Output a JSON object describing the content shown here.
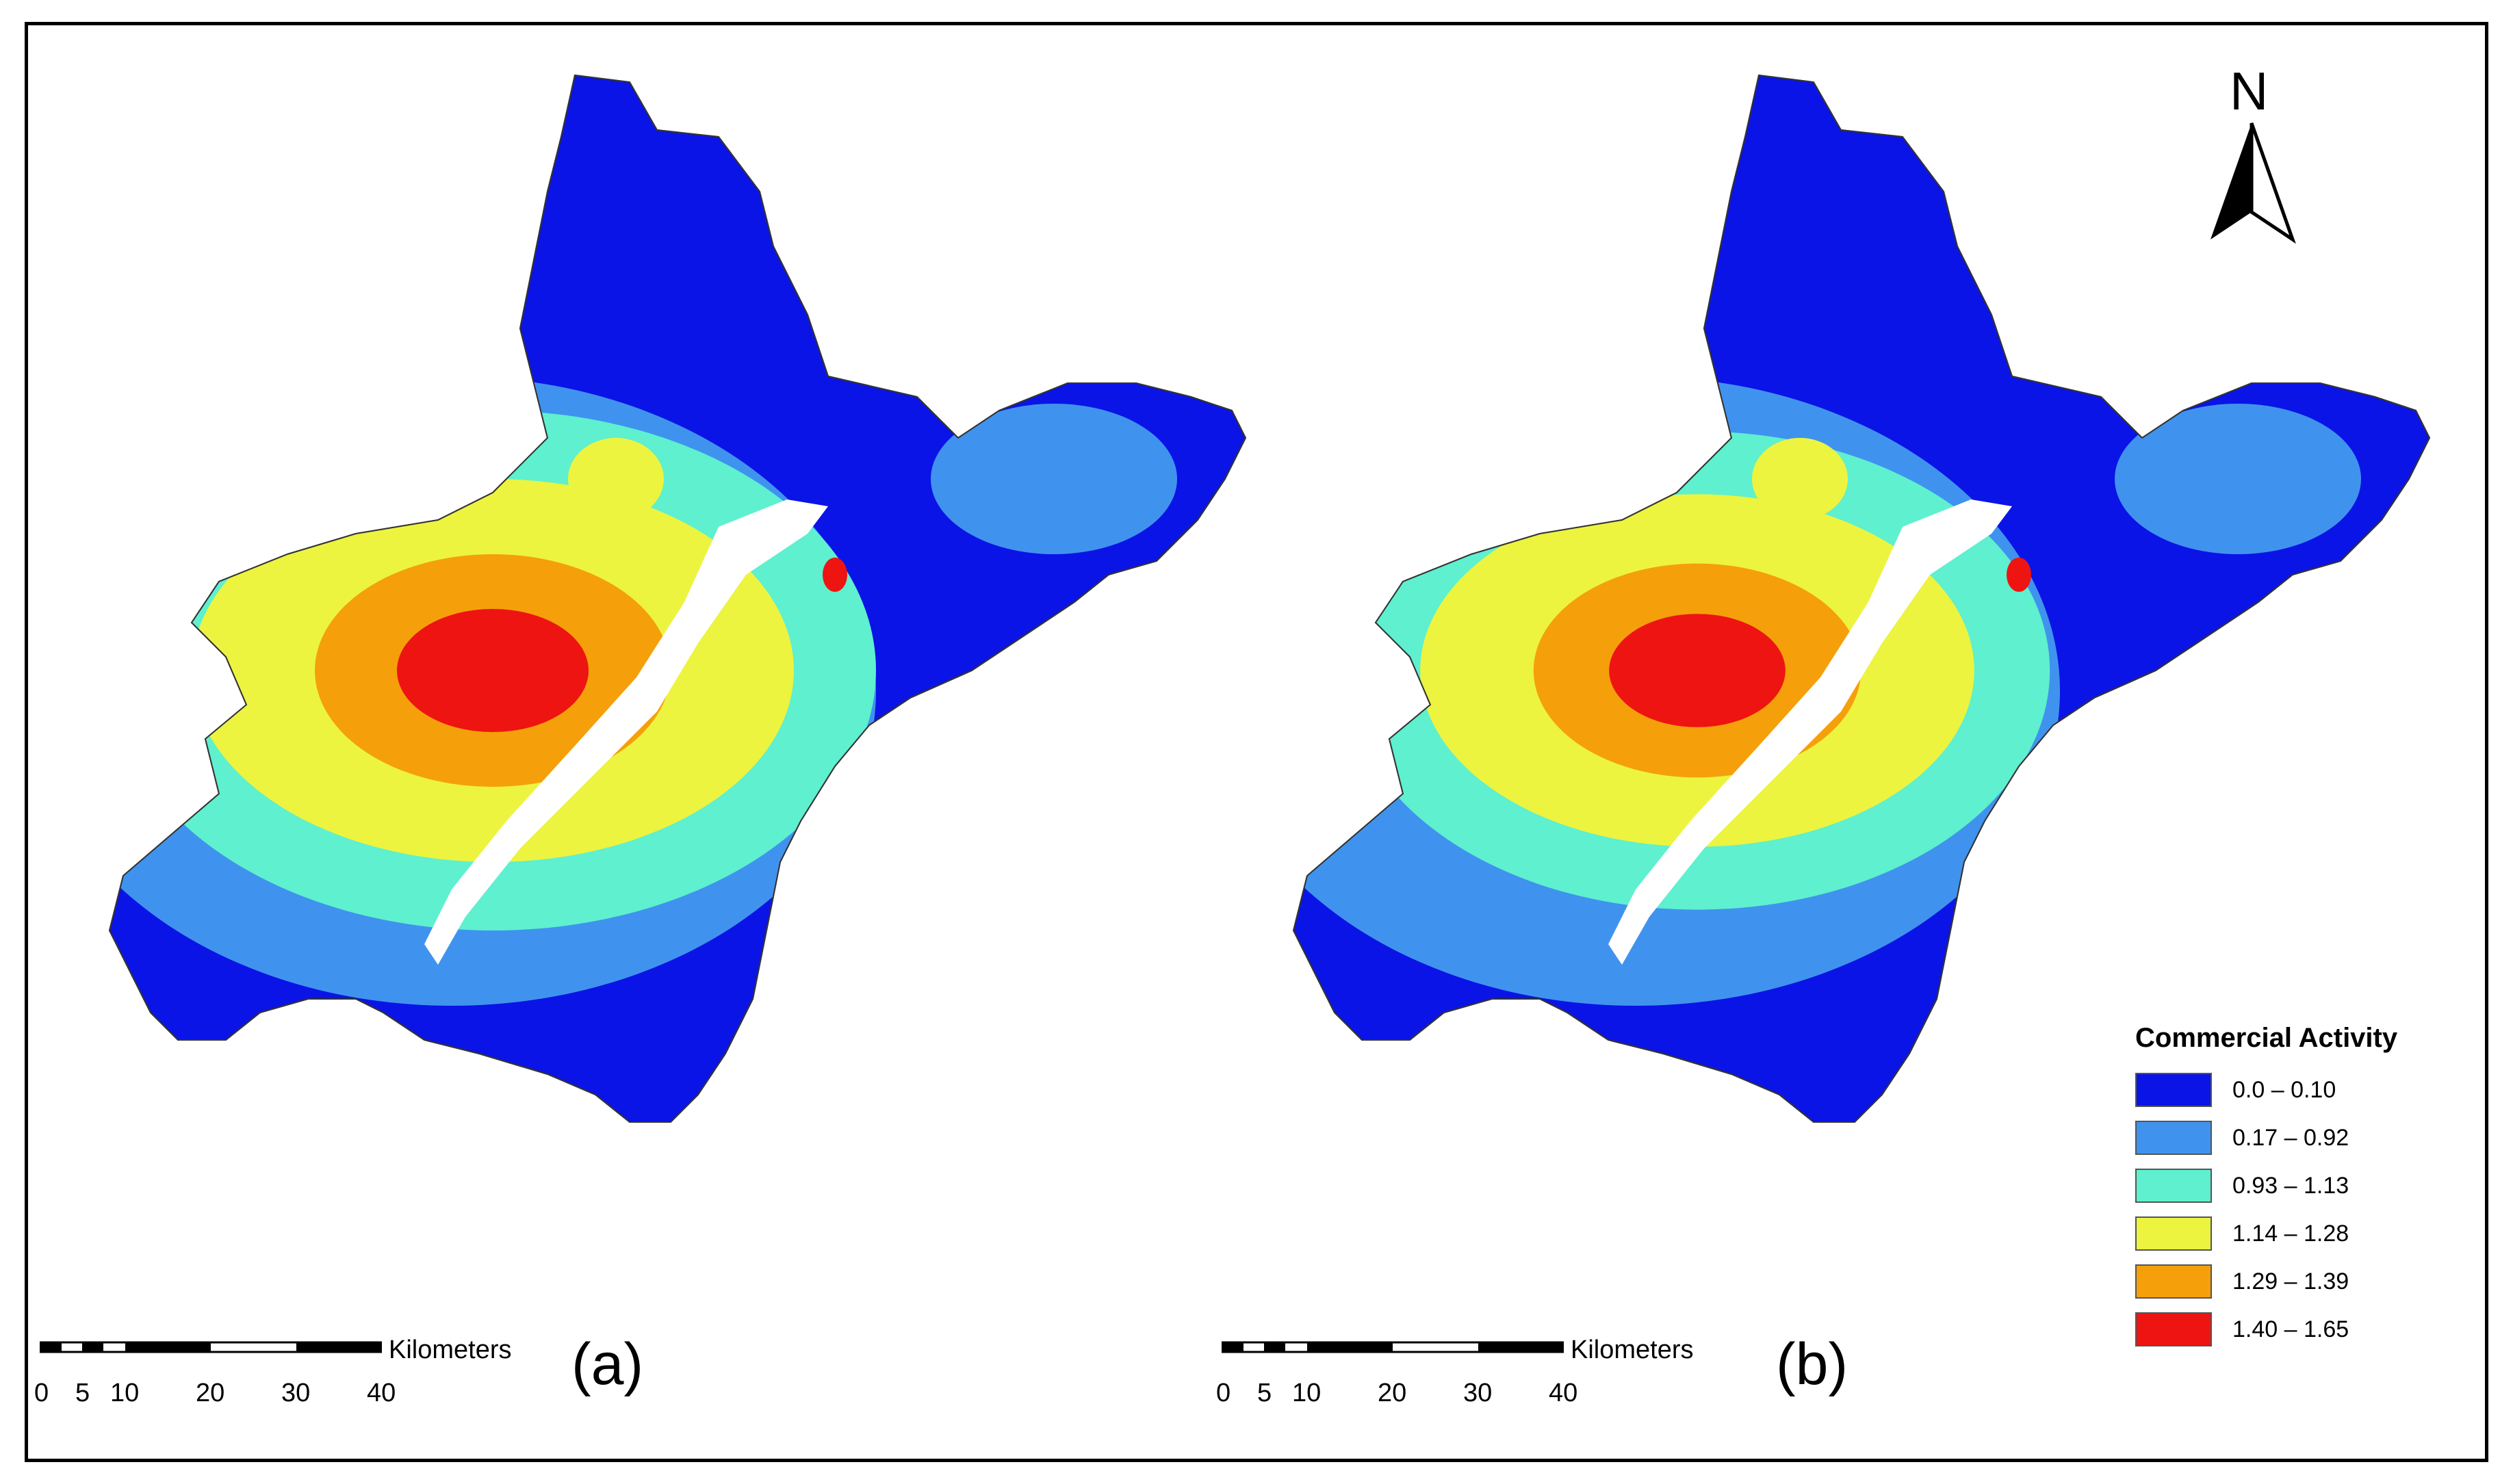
{
  "panels": [
    {
      "label": "(a)"
    },
    {
      "label": "(b)"
    }
  ],
  "scale_bar": {
    "ticks": [
      "0",
      "5",
      "10",
      "20",
      "30",
      "40"
    ],
    "unit": "Kilometers"
  },
  "north_arrow": {
    "letter": "N",
    "icon": "north-arrow-icon"
  },
  "legend": {
    "title": "Commercial Activity",
    "classes": [
      {
        "label": "0.0 – 0.10",
        "color": "#0a14e6"
      },
      {
        "label": "0.17 – 0.92",
        "color": "#3f93ee"
      },
      {
        "label": "0.93 – 1.13",
        "color": "#5ef0cf"
      },
      {
        "label": "1.14 – 1.28",
        "color": "#ecf440"
      },
      {
        "label": "1.29 – 1.39",
        "color": "#f5a00a"
      },
      {
        "label": "1.40 – 1.65",
        "color": "#ee1411"
      }
    ]
  },
  "colors": {
    "river": "#ffffff",
    "boundary": "#333333",
    "frame": "#000000"
  }
}
